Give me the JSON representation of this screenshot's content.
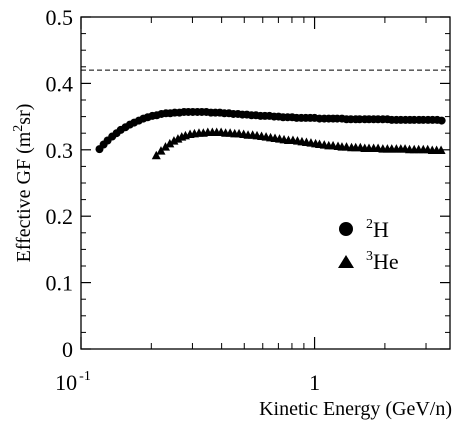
{
  "chart_data": {
    "type": "scatter",
    "xscale": "log",
    "xlim": [
      0.1,
      3.8
    ],
    "ylim": [
      0,
      0.5
    ],
    "xlabel": "Kinetic Energy (GeV/n)",
    "ylabel": "Effective GF (m",
    "ylabel_sup": "2",
    "ylabel_tail": "sr)",
    "xticks": [
      {
        "value": 0.1,
        "base": "10",
        "sup": "-1"
      },
      {
        "value": 1,
        "base": "1",
        "sup": ""
      }
    ],
    "yticks": [
      {
        "value": 0,
        "label": "0"
      },
      {
        "value": 0.1,
        "label": "0.1"
      },
      {
        "value": 0.2,
        "label": "0.2"
      },
      {
        "value": 0.3,
        "label": "0.3"
      },
      {
        "value": 0.4,
        "label": "0.4"
      },
      {
        "value": 0.5,
        "label": "0.5"
      }
    ],
    "reference_line": {
      "y": 0.42,
      "style": "dashed"
    },
    "legend": {
      "placement": "center-right"
    },
    "series": [
      {
        "name_sup": "2",
        "name": "H",
        "marker": "circle",
        "x": [
          0.12,
          0.125,
          0.13,
          0.136,
          0.142,
          0.148,
          0.155,
          0.162,
          0.169,
          0.177,
          0.185,
          0.193,
          0.202,
          0.211,
          0.221,
          0.231,
          0.241,
          0.252,
          0.264,
          0.276,
          0.288,
          0.301,
          0.315,
          0.329,
          0.344,
          0.36,
          0.376,
          0.393,
          0.411,
          0.43,
          0.449,
          0.47,
          0.491,
          0.513,
          0.537,
          0.561,
          0.587,
          0.613,
          0.641,
          0.671,
          0.701,
          0.733,
          0.767,
          0.802,
          0.838,
          0.877,
          0.917,
          0.958,
          1.0,
          1.05,
          1.1,
          1.15,
          1.2,
          1.25,
          1.31,
          1.37,
          1.43,
          1.5,
          1.56,
          1.64,
          1.71,
          1.79,
          1.87,
          1.96,
          2.05,
          2.14,
          2.24,
          2.34,
          2.45,
          2.56,
          2.67,
          2.8,
          2.92,
          3.06,
          3.2,
          3.35,
          3.5
        ],
        "y": [
          0.301,
          0.308,
          0.314,
          0.32,
          0.325,
          0.33,
          0.334,
          0.338,
          0.341,
          0.344,
          0.347,
          0.349,
          0.351,
          0.352,
          0.354,
          0.355,
          0.355,
          0.356,
          0.356,
          0.357,
          0.357,
          0.357,
          0.357,
          0.357,
          0.357,
          0.356,
          0.356,
          0.356,
          0.355,
          0.355,
          0.354,
          0.354,
          0.353,
          0.353,
          0.352,
          0.352,
          0.351,
          0.351,
          0.351,
          0.35,
          0.35,
          0.349,
          0.349,
          0.349,
          0.348,
          0.348,
          0.348,
          0.348,
          0.348,
          0.347,
          0.347,
          0.347,
          0.347,
          0.347,
          0.347,
          0.346,
          0.346,
          0.346,
          0.346,
          0.346,
          0.346,
          0.346,
          0.346,
          0.346,
          0.346,
          0.345,
          0.345,
          0.345,
          0.345,
          0.345,
          0.345,
          0.345,
          0.345,
          0.345,
          0.345,
          0.345,
          0.344
        ]
      },
      {
        "name_sup": "3",
        "name": "He",
        "marker": "triangle",
        "x": [
          0.21,
          0.22,
          0.23,
          0.24,
          0.25,
          0.26,
          0.27,
          0.28,
          0.293,
          0.306,
          0.32,
          0.334,
          0.349,
          0.365,
          0.381,
          0.398,
          0.416,
          0.435,
          0.455,
          0.475,
          0.497,
          0.519,
          0.543,
          0.567,
          0.593,
          0.62,
          0.648,
          0.677,
          0.708,
          0.74,
          0.773,
          0.808,
          0.845,
          0.883,
          0.923,
          0.965,
          1.01,
          1.05,
          1.1,
          1.15,
          1.2,
          1.26,
          1.31,
          1.37,
          1.44,
          1.5,
          1.57,
          1.64,
          1.71,
          1.79,
          1.87,
          1.96,
          2.05,
          2.14,
          2.24,
          2.34,
          2.44,
          2.55,
          2.67,
          2.79,
          2.92,
          3.05,
          3.19,
          3.33,
          3.48
        ],
        "y": [
          0.291,
          0.298,
          0.304,
          0.309,
          0.313,
          0.316,
          0.319,
          0.321,
          0.323,
          0.324,
          0.325,
          0.325,
          0.326,
          0.326,
          0.326,
          0.326,
          0.325,
          0.325,
          0.324,
          0.324,
          0.323,
          0.322,
          0.322,
          0.321,
          0.32,
          0.319,
          0.318,
          0.317,
          0.316,
          0.315,
          0.314,
          0.314,
          0.313,
          0.312,
          0.311,
          0.31,
          0.309,
          0.308,
          0.307,
          0.306,
          0.306,
          0.305,
          0.304,
          0.304,
          0.303,
          0.303,
          0.303,
          0.302,
          0.302,
          0.302,
          0.302,
          0.301,
          0.301,
          0.301,
          0.301,
          0.301,
          0.301,
          0.3,
          0.3,
          0.3,
          0.3,
          0.3,
          0.299,
          0.299,
          0.299
        ]
      }
    ]
  }
}
